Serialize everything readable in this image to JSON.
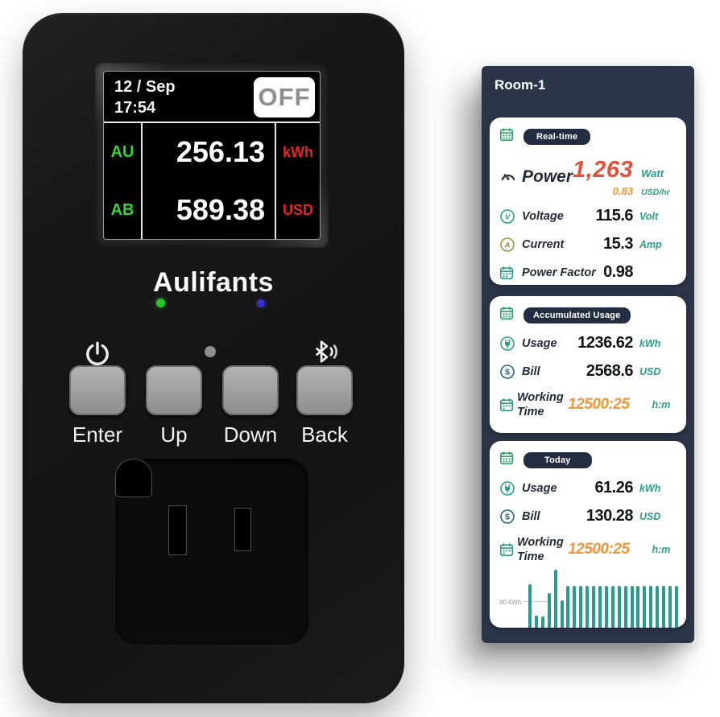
{
  "colors": {
    "navy": "#2b3547",
    "teal_unit": "#2a9d8f",
    "red_value": "#e2503c",
    "orange_value": "#f0973a",
    "lcd_green": "#35d435",
    "lcd_red": "#e42525",
    "bar_teal": "#2a9c8e"
  },
  "device": {
    "brand": "Aulifants",
    "screen": {
      "date": "12 / Sep",
      "time": "17:54",
      "power_state": "OFF",
      "rows": [
        {
          "tag": "AU",
          "value": "256.13",
          "unit": "kWh"
        },
        {
          "tag": "AB",
          "value": "589.38",
          "unit": "USD"
        }
      ]
    },
    "buttons": [
      {
        "label": "Enter"
      },
      {
        "label": "Up"
      },
      {
        "label": "Down"
      },
      {
        "label": "Back"
      }
    ]
  },
  "app": {
    "title": "Room-1",
    "cards": [
      {
        "badge": "Real-time",
        "power": {
          "label": "Power",
          "value": "1,263",
          "unit": "Watt",
          "sub_value": "0.83",
          "sub_unit": "USD/hr"
        },
        "rows": [
          {
            "label": "Voltage",
            "value": "115.6",
            "unit": "Volt"
          },
          {
            "label": "Current",
            "value": "15.3",
            "unit": "Amp"
          },
          {
            "label": "Power Factor",
            "value": "0.98",
            "unit": ""
          }
        ]
      },
      {
        "badge": "Accumulated Usage",
        "rows": [
          {
            "label": "Usage",
            "value": "1236.62",
            "unit": "kWh"
          },
          {
            "label": "Bill",
            "value": "2568.6",
            "unit": "USD"
          },
          {
            "label": "Working Time",
            "value": "12500:25",
            "unit": "h:m"
          }
        ]
      },
      {
        "badge": "Today",
        "rows": [
          {
            "label": "Usage",
            "value": "61.26",
            "unit": "kWh"
          },
          {
            "label": "Bill",
            "value": "130.28",
            "unit": "USD"
          },
          {
            "label": "Working Time",
            "value": "12500:25",
            "unit": "h:m"
          }
        ]
      }
    ]
  },
  "chart_data": {
    "type": "bar",
    "title": "",
    "xlabel": "",
    "ylabel": "kWh",
    "annotation": "80 kWh",
    "gridline_value": 80,
    "legend": false,
    "bar_color": "#2a9c8e",
    "values": [
      134,
      37,
      35,
      107,
      181,
      84,
      129,
      129,
      129,
      129,
      129,
      129,
      129,
      129,
      129,
      129,
      129,
      129,
      129,
      129,
      129,
      129,
      129,
      129
    ]
  }
}
